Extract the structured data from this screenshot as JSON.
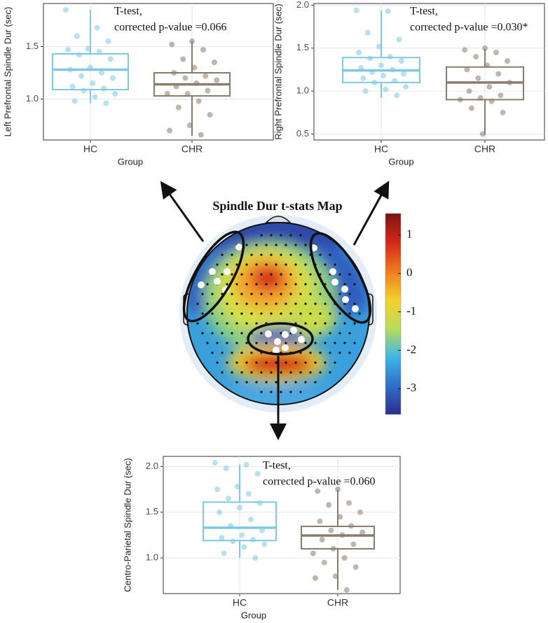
{
  "chart_data": [
    {
      "type": "boxplot",
      "annotation": [
        "T-test,",
        "corrected p-value =0.066"
      ],
      "xlabel": "Group",
      "ylabel": "Left Prefrontal Spindle Dur (sec)",
      "categories": [
        "HC",
        "CHR"
      ],
      "ylim": [
        0.61,
        1.91
      ],
      "yticks": [
        {
          "value": 1,
          "label": "1.0"
        },
        1.5
      ],
      "grid": true,
      "series": [
        {
          "name": "HC",
          "color": "#7ec8e3",
          "q1": 1.09,
          "median": 1.28,
          "q3": 1.43,
          "whisker_low": 0.96,
          "whisker_high": 1.85,
          "points": [
            1.85,
            1.68,
            1.6,
            1.55,
            1.48,
            1.47,
            1.45,
            1.42,
            1.38,
            1.3,
            1.28,
            1.25,
            1.22,
            1.2,
            1.15,
            1.12,
            1.1,
            1.08,
            1.05,
            1.02,
            0.98,
            0.96
          ]
        },
        {
          "name": "CHR",
          "color": "#8b7b6b",
          "q1": 1.03,
          "median": 1.14,
          "q3": 1.25,
          "whisker_low": 0.65,
          "whisker_high": 1.55,
          "points": [
            1.55,
            1.52,
            1.47,
            1.38,
            1.35,
            1.3,
            1.25,
            1.22,
            1.2,
            1.18,
            1.15,
            1.12,
            1.08,
            1.05,
            1.05,
            0.98,
            0.92,
            0.85,
            0.75,
            0.7,
            0.66
          ]
        }
      ]
    },
    {
      "type": "boxplot",
      "annotation": [
        "T-test,",
        "corrected p-value =0.030*"
      ],
      "xlabel": "Group",
      "ylabel": "Right Prefrontal Spindle Dur (sec)",
      "categories": [
        "HC",
        "CHR"
      ],
      "ylim": [
        0.43,
        2.02
      ],
      "yticks": [
        0.5,
        {
          "value": 1,
          "label": "1.0"
        },
        1.5,
        {
          "value": 2,
          "label": "2.0"
        }
      ],
      "grid": true,
      "series": [
        {
          "name": "HC",
          "color": "#7ec8e3",
          "q1": 1.1,
          "median": 1.24,
          "q3": 1.39,
          "whisker_low": 0.92,
          "whisker_high": 1.94,
          "points": [
            1.94,
            1.93,
            1.68,
            1.6,
            1.52,
            1.45,
            1.4,
            1.38,
            1.35,
            1.3,
            1.27,
            1.25,
            1.22,
            1.2,
            1.18,
            1.15,
            1.12,
            1.1,
            1.05,
            1.02,
            1.0,
            0.95
          ]
        },
        {
          "name": "CHR",
          "color": "#8b7b6b",
          "q1": 0.9,
          "median": 1.1,
          "q3": 1.28,
          "whisker_low": 0.49,
          "whisker_high": 1.49,
          "points": [
            1.5,
            1.48,
            1.45,
            1.4,
            1.35,
            1.3,
            1.25,
            1.2,
            1.15,
            1.1,
            1.05,
            1.0,
            0.95,
            0.92,
            0.9,
            0.88,
            0.8,
            0.75,
            0.5
          ]
        }
      ]
    },
    {
      "type": "topomap",
      "title": "Spindle Dur t-stats Map",
      "clim": [
        -3.67,
        1.56
      ],
      "colorbar_ticks": [
        1,
        0,
        -1,
        -2,
        -3
      ],
      "colormap": [
        "#2b2f8f",
        "#2f6fc8",
        "#3fb6e6",
        "#b9dc5a",
        "#f3d02a",
        "#ef7a1f",
        "#d3281a",
        "#7a1510"
      ]
    },
    {
      "type": "boxplot",
      "annotation": [
        "T-test,",
        "corrected p-value =0.060"
      ],
      "xlabel": "Group",
      "ylabel": "Centro-Parietal Spindle Dur (sec)",
      "categories": [
        "HC",
        "CHR"
      ],
      "ylim": [
        0.61,
        2.11
      ],
      "yticks": [
        {
          "value": 1,
          "label": "1.0"
        },
        1.5,
        {
          "value": 2,
          "label": "2.0"
        }
      ],
      "grid": true,
      "series": [
        {
          "name": "HC",
          "color": "#7ec8e3",
          "q1": 1.19,
          "median": 1.33,
          "q3": 1.61,
          "whisker_low": 1.0,
          "whisker_high": 2.02,
          "points": [
            2.04,
            2.02,
            1.98,
            1.92,
            1.78,
            1.75,
            1.7,
            1.65,
            1.6,
            1.55,
            1.5,
            1.42,
            1.35,
            1.3,
            1.25,
            1.22,
            1.2,
            1.18,
            1.15,
            1.12,
            1.05,
            1.0
          ]
        },
        {
          "name": "CHR",
          "color": "#8b7b6b",
          "q1": 1.1,
          "median": 1.245,
          "q3": 1.345,
          "whisker_low": 0.65,
          "whisker_high": 1.74,
          "points": [
            1.75,
            1.73,
            1.6,
            1.58,
            1.5,
            1.45,
            1.4,
            1.35,
            1.3,
            1.28,
            1.25,
            1.2,
            1.15,
            1.1,
            1.05,
            1.0,
            0.95,
            0.9,
            0.8,
            0.78,
            0.65
          ]
        }
      ]
    }
  ]
}
